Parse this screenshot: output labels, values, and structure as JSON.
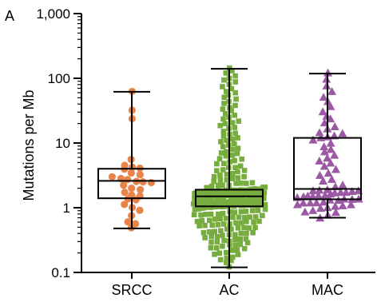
{
  "panel_label": "A",
  "colors": {
    "SRCC": "#E8834A",
    "AC": "#77AD3F",
    "MAC": "#9B59A3",
    "axis": "#000000"
  },
  "chart_data": {
    "type": "scatter",
    "title": "",
    "ylabel": "Mutations per Mb",
    "xlabel": "",
    "yscale": "log",
    "ylim": [
      0.1,
      1000
    ],
    "yticks": [
      {
        "value": 0.1,
        "label": "0.1"
      },
      {
        "value": 1,
        "label": "1"
      },
      {
        "value": 10,
        "label": "10"
      },
      {
        "value": 100,
        "label": "100"
      },
      {
        "value": 1000,
        "label": "1,000"
      }
    ],
    "categories": [
      "SRCC",
      "AC",
      "MAC"
    ],
    "grid": false,
    "series": [
      {
        "name": "SRCC",
        "marker": "circle",
        "summary": {
          "min": 0.48,
          "q1": 1.4,
          "median": 2.6,
          "q3": 4.0,
          "max": 62
        },
        "values": [
          62,
          33,
          24,
          5.7,
          4.6,
          4.2,
          4.0,
          3.9,
          3.5,
          3.3,
          3.0,
          2.8,
          2.7,
          2.6,
          2.5,
          2.4,
          2.2,
          2.0,
          1.9,
          1.7,
          1.6,
          1.5,
          1.4,
          1.3,
          1.1,
          1.0,
          0.9,
          0.75,
          0.62,
          0.55,
          0.48
        ]
      },
      {
        "name": "AC",
        "marker": "square",
        "summary": {
          "min": 0.12,
          "q1": 1.05,
          "median": 1.5,
          "q3": 1.9,
          "max": 140
        },
        "values": []
      },
      {
        "name": "MAC",
        "marker": "triangle",
        "summary": {
          "min": 0.7,
          "q1": 1.35,
          "median": 1.95,
          "q3": 12.0,
          "max": 118
        },
        "values": []
      }
    ]
  }
}
